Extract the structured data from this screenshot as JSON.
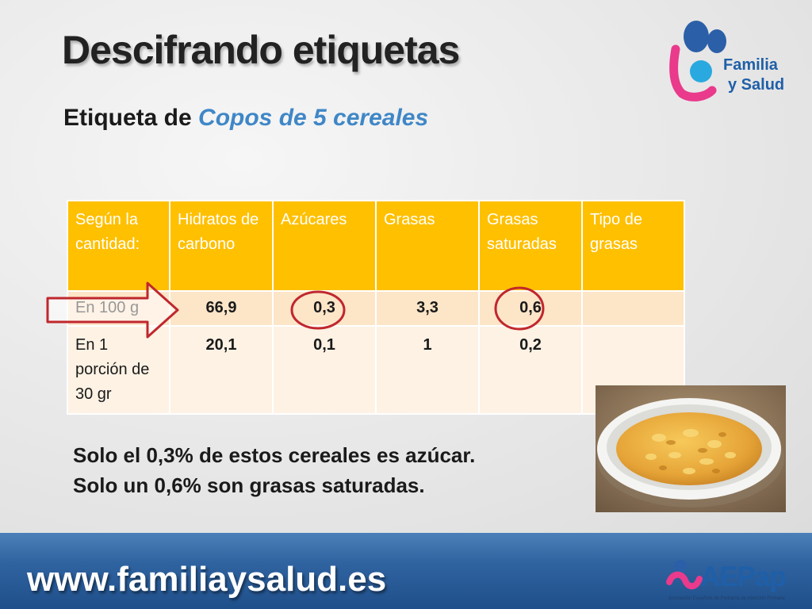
{
  "title": "Descifrando etiquetas",
  "subtitle": {
    "prefix": "Etiqueta de ",
    "product": "Copos de 5 cereales"
  },
  "logo": {
    "line1": "Familia",
    "line2": "y Salud"
  },
  "table": {
    "headers": [
      "Según la cantidad:",
      "Hidratos de carbono",
      "Azúcares",
      "Grasas",
      "Grasas saturadas",
      "Tipo de grasas"
    ],
    "rows": [
      {
        "label": "En 100 g",
        "values": [
          "66,9",
          "0,3",
          "3,3",
          "0,6",
          ""
        ]
      },
      {
        "label": "En 1 porción de 30 gr",
        "values": [
          "20,1",
          "0,1",
          "1",
          "0,2",
          ""
        ]
      }
    ]
  },
  "statements": [
    "Solo el 0,3% de estos cereales es azúcar.",
    "Solo un 0,6% son grasas saturadas."
  ],
  "footer": {
    "url": "www.familiaysalud.es",
    "org_logo": "AEPap",
    "org_name": "Asociación Española de Pediatría de Atención Primaria"
  },
  "colors": {
    "header_fill": "#ffc000",
    "highlight_row": "#fde5c8",
    "circle_red": "#c0272d",
    "accent_blue": "#3f87c7",
    "footer_blue": "#2f63a0"
  },
  "icons": {
    "arrow": "right-arrow-icon",
    "circle": "highlight-circle-icon",
    "photo": "cereal-bowl-photo"
  }
}
